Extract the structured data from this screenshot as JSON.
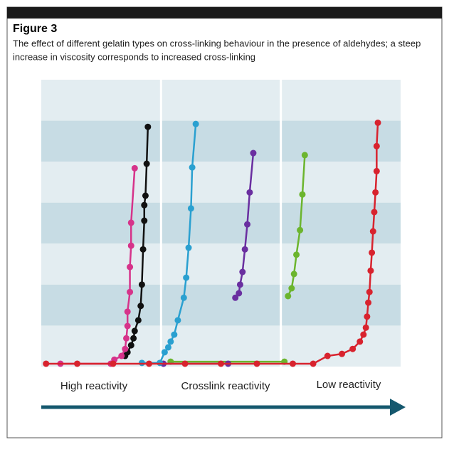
{
  "chart_data": {
    "type": "line",
    "title": "Figure 3",
    "subtitle": [
      "The effect of different gelatin types on cross-linking behaviour in the presence of aldehydes; a steep",
      "increase in viscosity corresponds to increased cross-linking"
    ],
    "annotations": [
      "High reactivity",
      "Crosslink reactivity",
      "Low reactivity"
    ],
    "xlim": [
      0,
      3
    ],
    "ylim": [
      0,
      7
    ],
    "series": [
      {
        "color": "#6cb52e",
        "x": [
          1.08,
          2.03,
          2.04,
          2.06,
          2.09,
          2.11,
          2.13,
          2.16,
          2.18,
          2.2
        ],
        "values": [
          0.12,
          0.12,
          null,
          1.72,
          1.91,
          2.26,
          2.73,
          3.33,
          4.2,
          5.16
        ]
      },
      {
        "color": "#6a2fa0",
        "x": [
          1.02,
          1.56,
          1.6,
          1.62,
          1.65,
          1.66,
          1.68,
          1.7,
          1.72,
          1.74,
          1.77
        ],
        "values": [
          0.07,
          0.07,
          null,
          1.68,
          1.79,
          2.0,
          2.31,
          2.86,
          3.47,
          4.25,
          5.21
        ]
      },
      {
        "color": "#2aa0d0",
        "x": [
          0.84,
          0.99,
          1.03,
          1.06,
          1.08,
          1.11,
          1.14,
          1.19,
          1.21,
          1.23,
          1.25,
          1.26,
          1.29
        ],
        "values": [
          0.09,
          0.09,
          0.35,
          0.47,
          0.61,
          0.78,
          1.13,
          1.68,
          2.17,
          2.9,
          3.86,
          4.86,
          5.92
        ]
      },
      {
        "color": "#111111",
        "x": [
          0.7,
          0.72,
          0.75,
          0.77,
          0.78,
          0.81,
          0.83,
          0.84,
          0.85,
          0.86,
          0.86,
          0.87,
          0.88,
          0.89
        ],
        "values": [
          0.26,
          0.35,
          0.52,
          0.69,
          0.87,
          1.13,
          1.48,
          2.0,
          2.86,
          3.56,
          3.94,
          4.17,
          4.95,
          5.85
        ]
      },
      {
        "color": "#d6338a",
        "x": [
          0.16,
          0.58,
          0.61,
          0.67,
          0.7,
          0.71,
          0.72,
          0.72,
          0.74,
          0.74,
          0.75,
          0.75,
          0.78
        ],
        "values": [
          0.07,
          0.07,
          0.17,
          0.26,
          0.43,
          0.69,
          0.99,
          1.34,
          1.82,
          2.43,
          2.95,
          3.51,
          4.84
        ]
      },
      {
        "color": "#d8232e",
        "x": [
          0.04,
          0.3,
          0.6,
          0.9,
          1.2,
          1.5,
          1.8,
          2.1,
          2.27,
          2.39,
          2.51,
          2.6,
          2.66,
          2.69,
          2.71,
          2.72,
          2.73,
          2.74,
          2.75,
          2.76,
          2.77,
          2.78,
          2.79,
          2.8,
          2.8,
          2.81
        ],
        "values": [
          0.07,
          0.07,
          0.07,
          0.07,
          0.07,
          0.07,
          0.07,
          0.07,
          0.07,
          0.26,
          0.31,
          0.43,
          0.61,
          0.78,
          0.95,
          1.22,
          1.56,
          1.82,
          2.34,
          2.78,
          3.3,
          3.77,
          4.25,
          4.77,
          5.38,
          5.95
        ]
      }
    ]
  }
}
